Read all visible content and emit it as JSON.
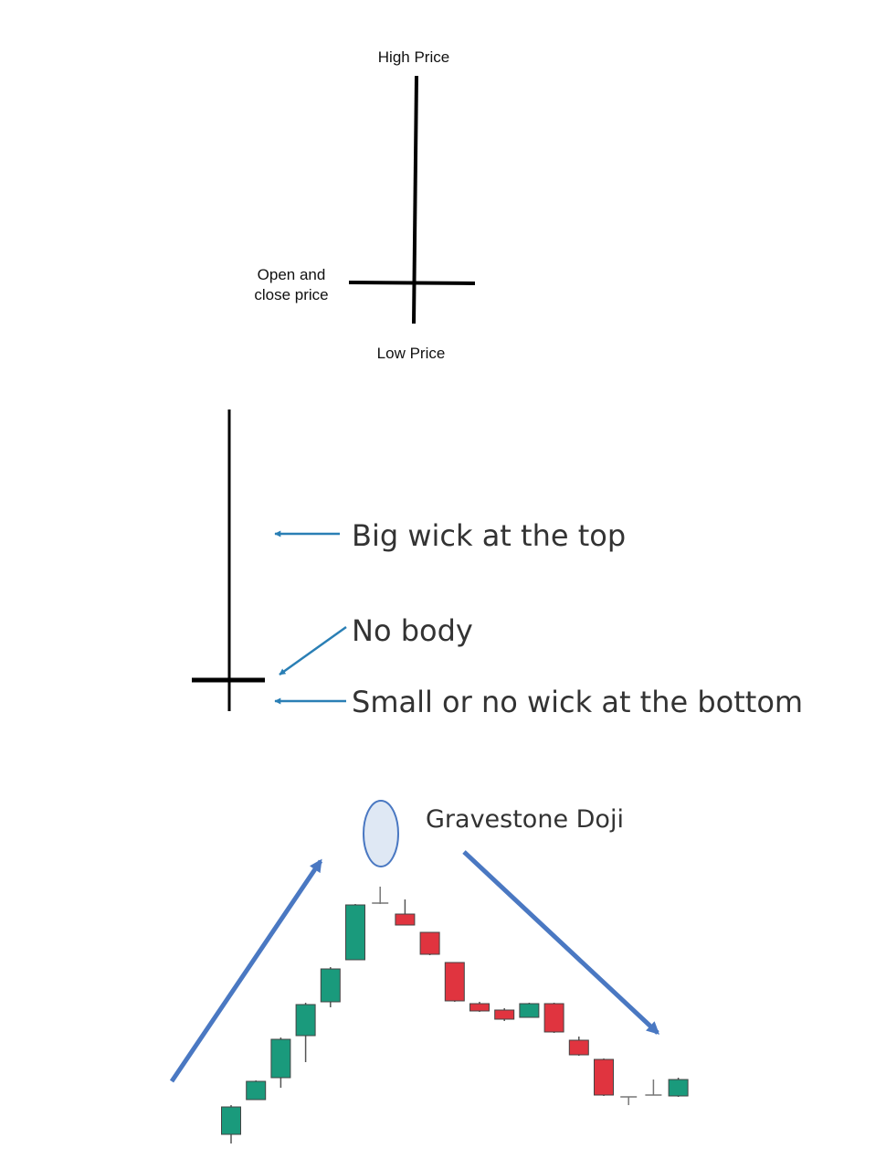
{
  "anatomy": {
    "high_label": "High Price",
    "open_close_label_line1": "Open and",
    "open_close_label_line2": "close price",
    "low_label": "Low Price"
  },
  "annotations": {
    "top_wick": "Big wick at the top",
    "no_body": "No body",
    "bottom_wick": "Small or no wick at the bottom",
    "arrow_color": "#2a7fb5"
  },
  "pattern_chart": {
    "title": "Gravestone Doji",
    "up_color": "#1a9a7c",
    "down_color": "#e0343f",
    "trend_arrow_color": "#4a78c2",
    "highlight_fill": "#dfe8f4",
    "highlight_stroke": "#4a78c2"
  },
  "chart_data": {
    "type": "candlestick",
    "candles": [
      {
        "open": 19,
        "high": 51,
        "low": 9,
        "close": 49
      },
      {
        "open": 57,
        "high": 78,
        "low": 57,
        "close": 77
      },
      {
        "open": 81,
        "high": 125,
        "low": 70,
        "close": 123
      },
      {
        "open": 127,
        "high": 163,
        "low": 98,
        "close": 161
      },
      {
        "open": 164,
        "high": 202,
        "low": 158,
        "close": 200
      },
      {
        "open": 210,
        "high": 271,
        "low": 210,
        "close": 270
      },
      {
        "open": 272,
        "high": 290,
        "low": 271,
        "close": 272,
        "doji": "gravestone"
      },
      {
        "open": 260,
        "high": 276,
        "low": 248,
        "close": 248
      },
      {
        "open": 240,
        "high": 240,
        "low": 215,
        "close": 216
      },
      {
        "open": 207,
        "high": 207,
        "low": 164,
        "close": 165
      },
      {
        "open": 162,
        "high": 164,
        "low": 153,
        "close": 154
      },
      {
        "open": 155,
        "high": 157,
        "low": 143,
        "close": 145
      },
      {
        "open": 147,
        "high": 163,
        "low": 147,
        "close": 162
      },
      {
        "open": 162,
        "high": 163,
        "low": 130,
        "close": 131
      },
      {
        "open": 122,
        "high": 126,
        "low": 105,
        "close": 106
      },
      {
        "open": 101,
        "high": 102,
        "low": 61,
        "close": 62
      },
      {
        "open": 60,
        "high": 60,
        "low": 51,
        "close": 60
      },
      {
        "open": 62,
        "high": 79,
        "low": 62,
        "close": 62
      },
      {
        "open": 61,
        "high": 81,
        "low": 60,
        "close": 79
      }
    ]
  }
}
